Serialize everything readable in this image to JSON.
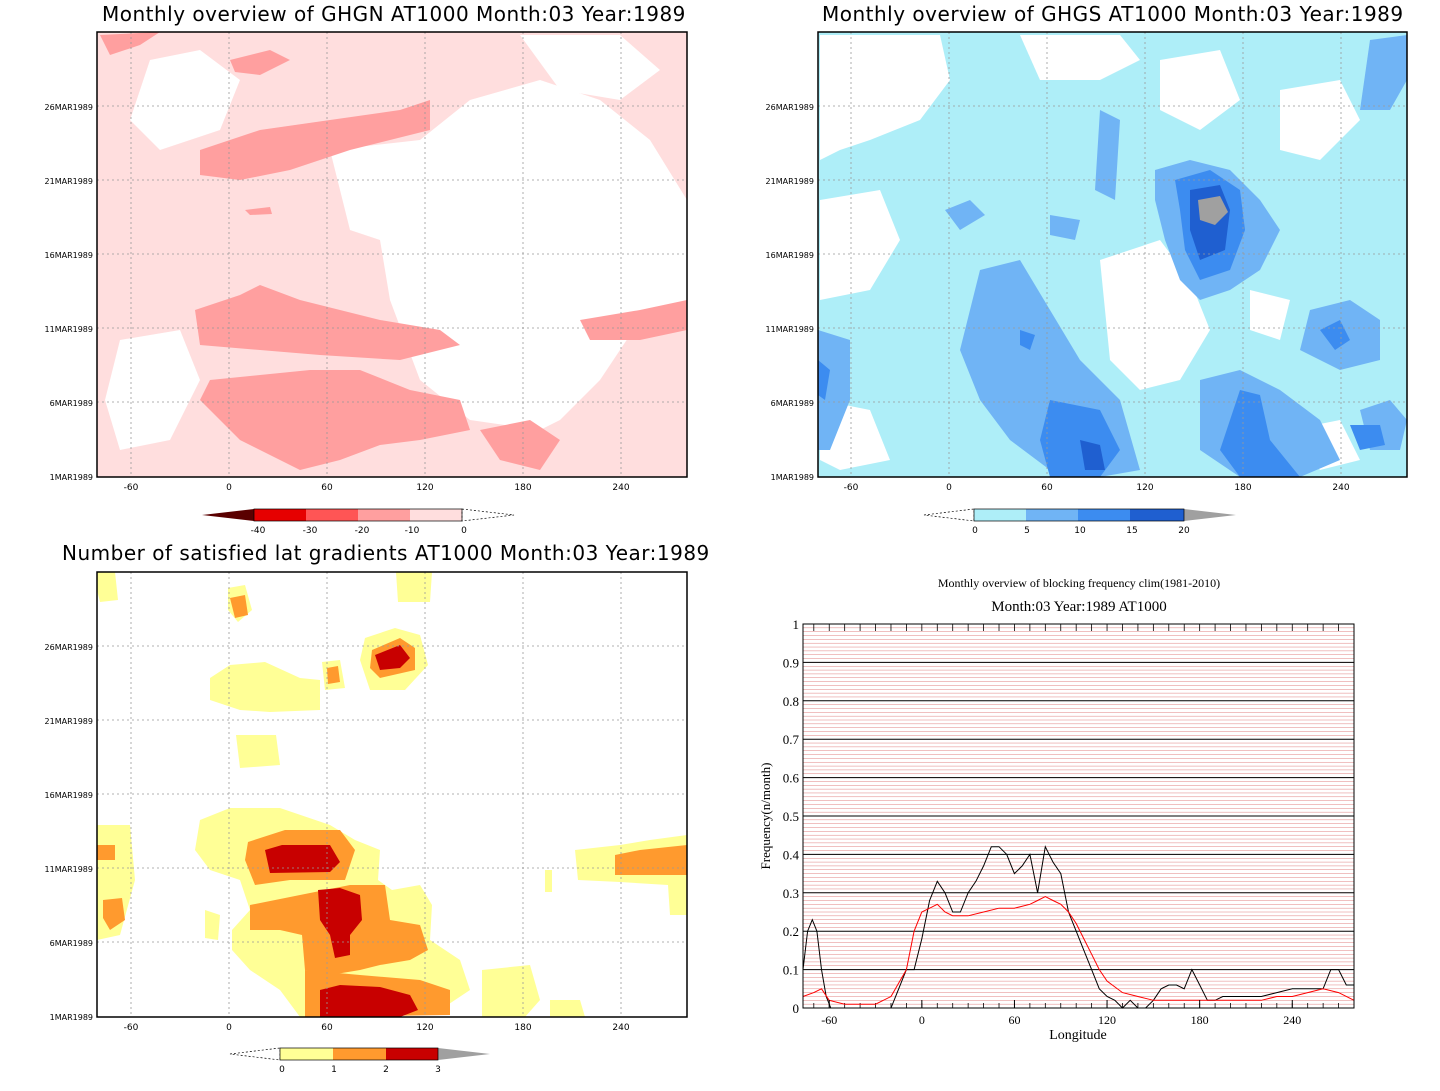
{
  "panels": {
    "ghgn": {
      "title": "Monthly overview of GHGN AT1000 Month:03 Year:1989",
      "colorbar": {
        "labels": [
          "-40",
          "-30",
          "-20",
          "-10",
          "0"
        ],
        "colors": [
          "#5a0000",
          "#e60000",
          "#ff5555",
          "#ff9f9f",
          "#ffdede",
          "#ffffff"
        ]
      }
    },
    "ghgs": {
      "title": "Monthly overview of GHGS AT1000 Month:03 Year:1989",
      "colorbar": {
        "labels": [
          "0",
          "5",
          "10",
          "15",
          "20"
        ],
        "colors": [
          "#ffffff",
          "#aeeef8",
          "#70b4f5",
          "#3c8cf0",
          "#1f5fd0",
          "#a0a0a0"
        ]
      }
    },
    "grad": {
      "title": "Number of satisfied lat gradients AT1000 Month:03 Year:1989",
      "colorbar": {
        "labels": [
          "0",
          "1",
          "2",
          "3"
        ],
        "colors": [
          "#ffffff",
          "#ffff96",
          "#ff9a2e",
          "#c80000",
          "#a0a0a0"
        ]
      }
    },
    "freq": {
      "title_line1": "Monthly overview of blocking frequency clim(1981-2010)",
      "title_line2": "Month:03 Year:1989  AT1000",
      "xlabel": "Longitude",
      "ylabel": "Frequency(n/month)"
    }
  },
  "map_axes": {
    "x_ticks": [
      "-60",
      "0",
      "60",
      "120",
      "180",
      "240"
    ],
    "y_ticks": [
      "1MAR1989",
      "6MAR1989",
      "11MAR1989",
      "16MAR1989",
      "21MAR1989",
      "26MAR1989"
    ]
  },
  "chart_data": [
    {
      "type": "line",
      "title": "Monthly overview of blocking frequency clim(1981-2010)",
      "subtitle": "Month:03 Year:1989  AT1000",
      "xlabel": "Longitude",
      "ylabel": "Frequency(n/month)",
      "xlim": [
        -77,
        280
      ],
      "ylim": [
        0,
        1
      ],
      "x_ticks": [
        "-60",
        "0",
        "60",
        "120",
        "180",
        "240"
      ],
      "y_ticks": [
        "0",
        "0.1",
        "0.2",
        "0.3",
        "0.4",
        "0.5",
        "0.6",
        "0.7",
        "0.8",
        "0.9",
        "1"
      ],
      "grid": true,
      "series": [
        {
          "color": "#000000",
          "x": [
            -77,
            -74,
            -71,
            -68,
            -65,
            -62,
            -59,
            -56,
            -50,
            -40,
            -30,
            -25,
            -20,
            -15,
            -10,
            -5,
            0,
            5,
            10,
            15,
            20,
            25,
            30,
            35,
            40,
            45,
            50,
            55,
            60,
            65,
            70,
            75,
            80,
            85,
            90,
            95,
            100,
            105,
            110,
            115,
            120,
            125,
            130,
            135,
            140,
            145,
            150,
            155,
            160,
            165,
            170,
            175,
            180,
            185,
            190,
            195,
            200,
            210,
            220,
            230,
            240,
            250,
            260,
            265,
            270,
            275,
            280
          ],
          "y": [
            0.1,
            0.2,
            0.23,
            0.2,
            0.1,
            0.03,
            0,
            0,
            0,
            0,
            0,
            0,
            0,
            0.05,
            0.1,
            0.1,
            0.18,
            0.28,
            0.33,
            0.3,
            0.25,
            0.25,
            0.3,
            0.33,
            0.37,
            0.42,
            0.42,
            0.4,
            0.35,
            0.37,
            0.4,
            0.3,
            0.42,
            0.38,
            0.35,
            0.25,
            0.2,
            0.15,
            0.1,
            0.05,
            0.03,
            0.02,
            0,
            0.02,
            0,
            0,
            0.02,
            0.05,
            0.06,
            0.06,
            0.05,
            0.1,
            0.06,
            0.02,
            0.02,
            0.03,
            0.03,
            0.03,
            0.03,
            0.04,
            0.05,
            0.05,
            0.05,
            0.1,
            0.1,
            0.06,
            0.06
          ]
        },
        {
          "color": "#ff0000",
          "x": [
            -77,
            -70,
            -65,
            -60,
            -50,
            -40,
            -30,
            -20,
            -10,
            -5,
            0,
            5,
            10,
            15,
            20,
            30,
            40,
            50,
            60,
            70,
            75,
            80,
            85,
            90,
            95,
            100,
            105,
            110,
            115,
            120,
            130,
            140,
            150,
            160,
            170,
            180,
            190,
            200,
            210,
            220,
            230,
            240,
            250,
            260,
            270,
            280
          ],
          "y": [
            0.03,
            0.04,
            0.05,
            0.02,
            0.01,
            0.01,
            0.01,
            0.03,
            0.1,
            0.2,
            0.25,
            0.26,
            0.27,
            0.25,
            0.24,
            0.24,
            0.25,
            0.26,
            0.26,
            0.27,
            0.28,
            0.29,
            0.28,
            0.27,
            0.25,
            0.22,
            0.18,
            0.14,
            0.1,
            0.07,
            0.04,
            0.03,
            0.02,
            0.02,
            0.02,
            0.02,
            0.02,
            0.02,
            0.02,
            0.02,
            0.03,
            0.03,
            0.04,
            0.05,
            0.04,
            0.02
          ]
        }
      ]
    }
  ]
}
